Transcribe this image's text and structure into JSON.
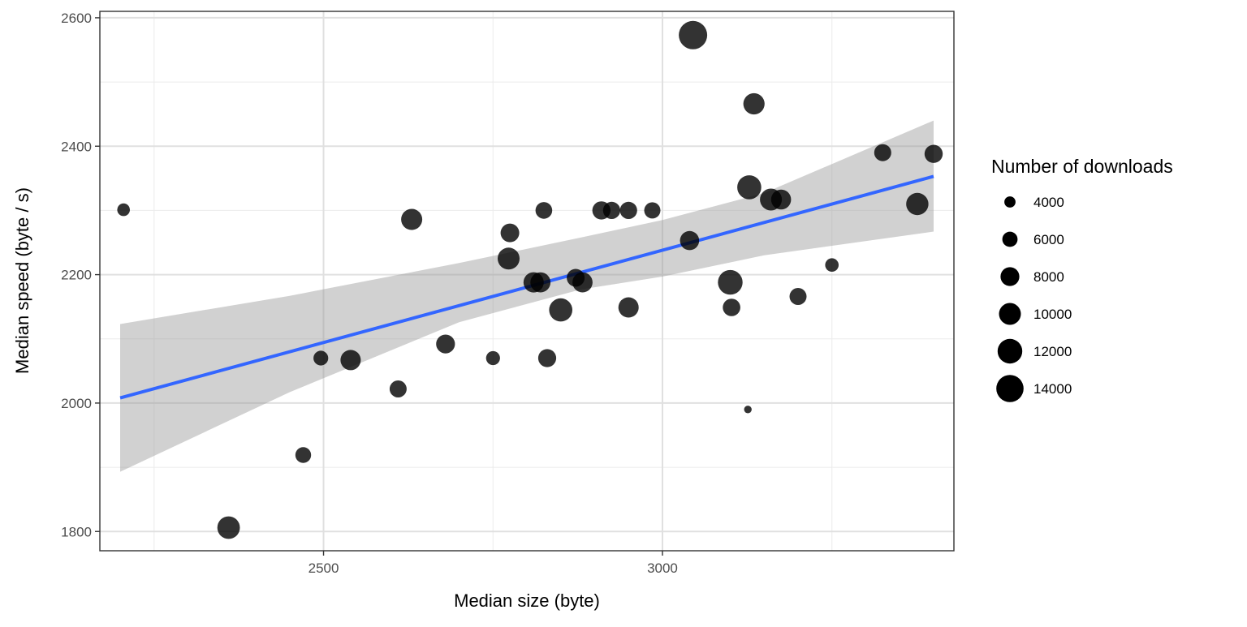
{
  "chart_data": {
    "type": "scatter",
    "xlabel": "Median size (byte)",
    "ylabel": "Median speed (byte / s)",
    "xlim": [
      2170,
      3430
    ],
    "ylim": [
      1770,
      2610
    ],
    "x_ticks": [
      2500,
      3000
    ],
    "x_minor_ticks": [
      2250,
      2750,
      3250
    ],
    "y_ticks": [
      1800,
      2000,
      2200,
      2400,
      2600
    ],
    "y_minor_ticks": [
      1900,
      2100,
      2300,
      2500
    ],
    "grid": true,
    "legend": {
      "title": "Number of downloads",
      "placement": "right",
      "entries": [
        {
          "label": "4000",
          "value": 4000
        },
        {
          "label": "6000",
          "value": 6000
        },
        {
          "label": "8000",
          "value": 8000
        },
        {
          "label": "10000",
          "value": 10000
        },
        {
          "label": "12000",
          "value": 12000
        },
        {
          "label": "14000",
          "value": 14000
        }
      ]
    },
    "size_range": [
      2500,
      15000
    ],
    "point_color": "#000000",
    "point_opacity": 0.8,
    "trend": {
      "method": "linear",
      "color": "#3366FF",
      "x": [
        2200,
        3400
      ],
      "y": [
        2008,
        2353
      ],
      "ci_band": {
        "color": "#999999",
        "x": [
          2200,
          2450,
          2700,
          2880,
          3000,
          3150,
          3400
        ],
        "upper": [
          2123,
          2167,
          2218,
          2258,
          2285,
          2327,
          2440
        ],
        "lower": [
          1893,
          2017,
          2126,
          2177,
          2197,
          2230,
          2267
        ]
      }
    },
    "points": [
      {
        "x": 2205,
        "y": 2301,
        "n": 4700
      },
      {
        "x": 2360,
        "y": 1806,
        "n": 10500
      },
      {
        "x": 2470,
        "y": 1919,
        "n": 6200
      },
      {
        "x": 2496,
        "y": 2070,
        "n": 5700
      },
      {
        "x": 2540,
        "y": 2067,
        "n": 9000
      },
      {
        "x": 2610,
        "y": 2022,
        "n": 7000
      },
      {
        "x": 2630,
        "y": 2286,
        "n": 9500
      },
      {
        "x": 2680,
        "y": 2092,
        "n": 8000
      },
      {
        "x": 2750,
        "y": 2070,
        "n": 5300
      },
      {
        "x": 2775,
        "y": 2265,
        "n": 7900
      },
      {
        "x": 2773,
        "y": 2225,
        "n": 10000
      },
      {
        "x": 2810,
        "y": 2188,
        "n": 9000
      },
      {
        "x": 2820,
        "y": 2188,
        "n": 8800
      },
      {
        "x": 2825,
        "y": 2300,
        "n": 6800
      },
      {
        "x": 2830,
        "y": 2070,
        "n": 7500
      },
      {
        "x": 2850,
        "y": 2145,
        "n": 11000
      },
      {
        "x": 2872,
        "y": 2195,
        "n": 7400
      },
      {
        "x": 2882,
        "y": 2188,
        "n": 8800
      },
      {
        "x": 2910,
        "y": 2300,
        "n": 7600
      },
      {
        "x": 2925,
        "y": 2300,
        "n": 7100
      },
      {
        "x": 2950,
        "y": 2300,
        "n": 7100
      },
      {
        "x": 2950,
        "y": 2149,
        "n": 9000
      },
      {
        "x": 2985,
        "y": 2300,
        "n": 6500
      },
      {
        "x": 3040,
        "y": 2253,
        "n": 8200
      },
      {
        "x": 3045,
        "y": 2573,
        "n": 15000
      },
      {
        "x": 3100,
        "y": 2188,
        "n": 12000
      },
      {
        "x": 3102,
        "y": 2149,
        "n": 7200
      },
      {
        "x": 3126,
        "y": 1990,
        "n": 2600
      },
      {
        "x": 3128,
        "y": 2336,
        "n": 11500
      },
      {
        "x": 3135,
        "y": 2466,
        "n": 9600
      },
      {
        "x": 3160,
        "y": 2317,
        "n": 10000
      },
      {
        "x": 3175,
        "y": 2317,
        "n": 8700
      },
      {
        "x": 3200,
        "y": 2166,
        "n": 7000
      },
      {
        "x": 3250,
        "y": 2215,
        "n": 5100
      },
      {
        "x": 3325,
        "y": 2390,
        "n": 7000
      },
      {
        "x": 3376,
        "y": 2310,
        "n": 10300
      },
      {
        "x": 3400,
        "y": 2388,
        "n": 7600
      }
    ]
  }
}
